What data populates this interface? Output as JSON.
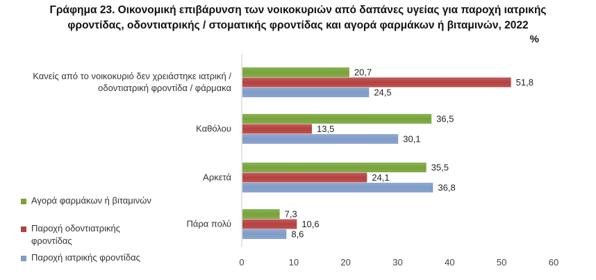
{
  "title": {
    "line1": "Γράφημα 23.  Οικονομική επιβάρυνση  των  νοικοκυριών από δαπάνες υγείας για παροχή ιατρικής",
    "line2": "φροντίδας, οδοντιατρικής / στοματικής φροντίδας και αγορά φαρμάκων ή βιταμινών, 2022"
  },
  "unit": "%",
  "colors": {
    "green": "#77a33a",
    "red": "#b5413f",
    "blue": "#7f9bc8",
    "axis": "#c8c8c8"
  },
  "chart_data": {
    "type": "bar",
    "orientation": "horizontal",
    "categories": [
      [
        "Κανείς από το νοικοκυριό δεν χρειάστηκε ιατρική /",
        "οδοντιατρική φροντίδα / φάρμακα"
      ],
      [
        "Καθόλου"
      ],
      [
        "Αρκετά"
      ],
      [
        "Πάρα πολύ"
      ]
    ],
    "series": [
      {
        "name": "Αγορά φαρμάκων ή βιταμινών",
        "color": "#77a33a",
        "values": [
          20.7,
          36.5,
          35.5,
          7.3
        ],
        "labels": [
          "20,7",
          "36,5",
          "35,5",
          "7,3"
        ]
      },
      {
        "name": "Παροχή οδοντιατρικής φροντίδας",
        "color": "#b5413f",
        "values": [
          51.8,
          13.5,
          24.1,
          10.6
        ],
        "labels": [
          "51,8",
          "13,5",
          "24,1",
          "10,6"
        ]
      },
      {
        "name": "Παροχή ιατρικής φροντίδας",
        "color": "#7f9bc8",
        "values": [
          24.5,
          30.1,
          36.8,
          8.6
        ],
        "labels": [
          "24,5",
          "30,1",
          "36,8",
          "8,6"
        ]
      }
    ],
    "xlim": [
      0,
      60
    ],
    "xticks": [
      0,
      10,
      20,
      30,
      40,
      50,
      60
    ],
    "legend": {
      "position": "left",
      "items": [
        {
          "label_lines": [
            "Αγορά φαρμάκων ή βιταμινών"
          ]
        },
        {
          "label_lines": [
            "Παροχή οδοντιατρικής",
            "φροντίδας"
          ]
        },
        {
          "label_lines": [
            "Παροχή ιατρικής φροντίδας"
          ]
        }
      ]
    }
  }
}
